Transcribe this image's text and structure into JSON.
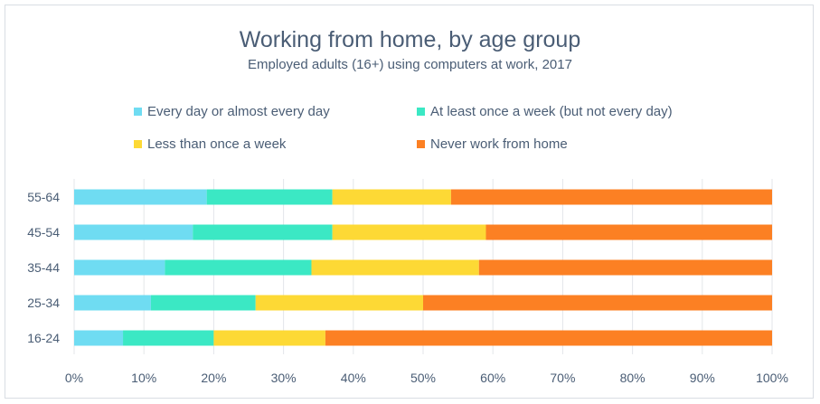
{
  "chart_data": {
    "type": "bar",
    "orientation": "horizontal",
    "stacked": true,
    "title": "Working from home, by age group",
    "subtitle": "Employed adults (16+) using computers at work, 2017",
    "xlabel": "",
    "ylabel": "",
    "xlim": [
      0,
      100
    ],
    "x_ticks": [
      "0%",
      "10%",
      "20%",
      "30%",
      "40%",
      "50%",
      "60%",
      "70%",
      "80%",
      "90%",
      "100%"
    ],
    "categories": [
      "55-64",
      "45-54",
      "35-44",
      "25-34",
      "16-24"
    ],
    "series": [
      {
        "name": "Every day or almost every day",
        "color": "#6fdcf2",
        "values": [
          19,
          17,
          13,
          11,
          7
        ]
      },
      {
        "name": "At least once a week (but not every day)",
        "color": "#3be8c4",
        "values": [
          18,
          20,
          21,
          15,
          13
        ]
      },
      {
        "name": "Less than once a week",
        "color": "#fdd935",
        "values": [
          17,
          22,
          24,
          24,
          16
        ]
      },
      {
        "name": "Never work from home",
        "color": "#fc8023",
        "values": [
          46,
          41,
          42,
          50,
          64
        ]
      }
    ],
    "grid": {
      "vertical": true
    },
    "legend_position": "top"
  }
}
